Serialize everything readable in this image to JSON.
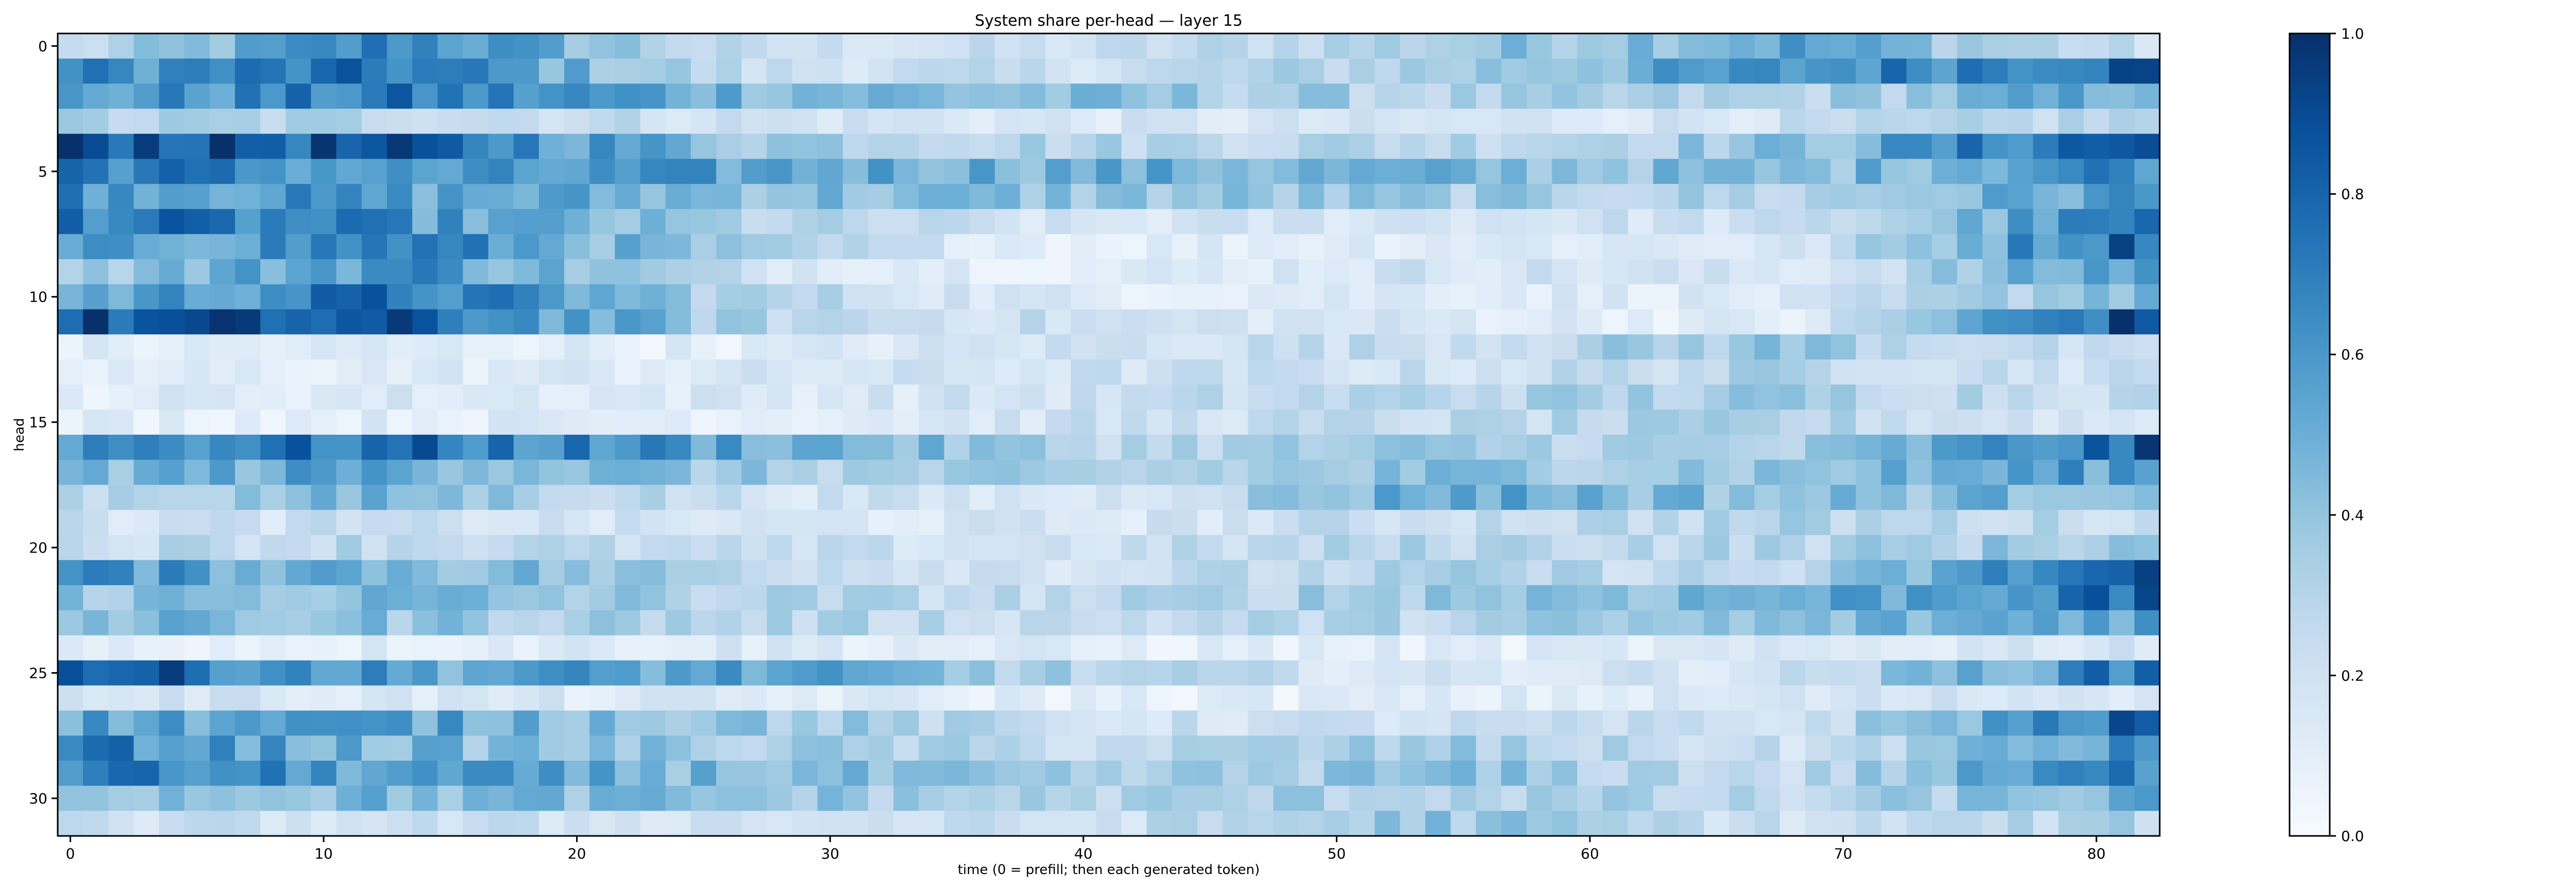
{
  "chart_data": {
    "type": "heatmap",
    "title": "System share per-head — layer 15",
    "xlabel": "time (0 = prefill; then each generated token)",
    "ylabel": "head",
    "x_ticks": [
      0,
      10,
      20,
      30,
      40,
      50,
      60,
      70,
      80
    ],
    "y_ticks": [
      0,
      5,
      10,
      15,
      20,
      25,
      30
    ],
    "xlim": [
      -0.5,
      82.5
    ],
    "ylim": [
      31.5,
      -0.5
    ],
    "n_cols": 83,
    "n_rows": 32,
    "colorbar": {
      "min": 0.0,
      "max": 1.0,
      "ticks": [
        "0.0",
        "0.2",
        "0.4",
        "0.6",
        "0.8",
        "1.0"
      ]
    },
    "colormap": "Blues",
    "row_profiles": [
      [
        0.22,
        0.7,
        0.2,
        0.2,
        0.35,
        0.55,
        0.2
      ],
      [
        0.62,
        0.72,
        0.22,
        0.22,
        0.35,
        0.6,
        0.85
      ],
      [
        0.55,
        0.7,
        0.5,
        0.4,
        0.3,
        0.3,
        0.55
      ],
      [
        0.3,
        0.3,
        0.2,
        0.15,
        0.15,
        0.2,
        0.3
      ],
      [
        0.92,
        0.8,
        0.4,
        0.3,
        0.3,
        0.4,
        0.9
      ],
      [
        0.75,
        0.55,
        0.55,
        0.5,
        0.45,
        0.4,
        0.7
      ],
      [
        0.65,
        0.55,
        0.45,
        0.4,
        0.35,
        0.3,
        0.6
      ],
      [
        0.75,
        0.6,
        0.3,
        0.15,
        0.2,
        0.2,
        0.7
      ],
      [
        0.5,
        0.7,
        0.3,
        0.1,
        0.15,
        0.15,
        0.85
      ],
      [
        0.35,
        0.65,
        0.2,
        0.1,
        0.2,
        0.15,
        0.6
      ],
      [
        0.5,
        0.75,
        0.3,
        0.12,
        0.15,
        0.12,
        0.5
      ],
      [
        0.85,
        0.8,
        0.3,
        0.2,
        0.15,
        0.1,
        0.9
      ],
      [
        0.1,
        0.12,
        0.1,
        0.2,
        0.25,
        0.4,
        0.15
      ],
      [
        0.1,
        0.12,
        0.15,
        0.2,
        0.2,
        0.3,
        0.2
      ],
      [
        0.12,
        0.15,
        0.15,
        0.2,
        0.3,
        0.35,
        0.25
      ],
      [
        0.1,
        0.12,
        0.12,
        0.2,
        0.25,
        0.3,
        0.15
      ],
      [
        0.65,
        0.75,
        0.55,
        0.3,
        0.35,
        0.3,
        0.8
      ],
      [
        0.45,
        0.55,
        0.35,
        0.3,
        0.4,
        0.4,
        0.6
      ],
      [
        0.3,
        0.45,
        0.2,
        0.15,
        0.55,
        0.4,
        0.5
      ],
      [
        0.2,
        0.2,
        0.15,
        0.15,
        0.25,
        0.3,
        0.25
      ],
      [
        0.25,
        0.3,
        0.2,
        0.2,
        0.3,
        0.3,
        0.4
      ],
      [
        0.6,
        0.5,
        0.3,
        0.2,
        0.3,
        0.25,
        0.85
      ],
      [
        0.4,
        0.45,
        0.3,
        0.25,
        0.4,
        0.5,
        0.75
      ],
      [
        0.45,
        0.4,
        0.3,
        0.25,
        0.3,
        0.4,
        0.6
      ],
      [
        0.1,
        0.12,
        0.15,
        0.1,
        0.1,
        0.12,
        0.2
      ],
      [
        0.88,
        0.55,
        0.55,
        0.3,
        0.15,
        0.2,
        0.75
      ],
      [
        0.2,
        0.15,
        0.12,
        0.1,
        0.1,
        0.15,
        0.2
      ],
      [
        0.55,
        0.55,
        0.4,
        0.2,
        0.2,
        0.2,
        0.8
      ],
      [
        0.7,
        0.45,
        0.35,
        0.25,
        0.35,
        0.2,
        0.6
      ],
      [
        0.7,
        0.55,
        0.45,
        0.3,
        0.4,
        0.25,
        0.7
      ],
      [
        0.45,
        0.45,
        0.4,
        0.3,
        0.35,
        0.25,
        0.5
      ],
      [
        0.2,
        0.2,
        0.2,
        0.2,
        0.4,
        0.2,
        0.3
      ]
    ]
  }
}
